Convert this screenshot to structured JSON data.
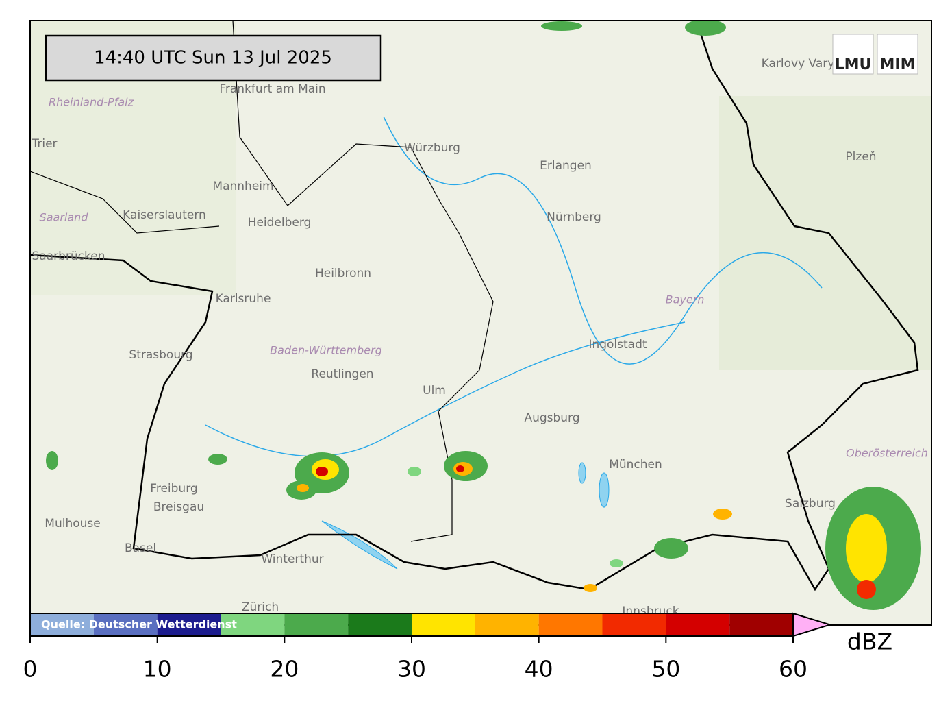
{
  "timestamp": "14:40 UTC  Sun 13 Jul 2025",
  "logo": [
    "LMU",
    "MIM"
  ],
  "map_labels": {
    "cities": [
      "Frankfurt am Main",
      "Trier",
      "Mannheim",
      "Kaiserslautern",
      "Heidelberg",
      "Saarbrücken",
      "Karlsruhe",
      "Heilbronn",
      "Strasbourg",
      "Reutlingen",
      "Ulm",
      "Würzburg",
      "Erlangen",
      "Nürnberg",
      "Ingolstadt",
      "Augsburg",
      "München",
      "Freiburg",
      "Breisgau",
      "Mulhouse",
      "Basel",
      "Winterthur",
      "Zürich",
      "Salzburg",
      "Innsbruck",
      "Karlovy Vary",
      "Plzeň"
    ],
    "regions": [
      "Rheinland-Pfalz",
      "Saarland",
      "Baden-Württemberg",
      "Bayern",
      "Oberösterreich"
    ]
  },
  "colorbar": {
    "bins": [
      0,
      5,
      10,
      15,
      20,
      25,
      30,
      35,
      40,
      45,
      50,
      55,
      60
    ],
    "colors": [
      "#8eaedb",
      "#5a6fc0",
      "#1c1c8e",
      "#7fd67f",
      "#4caa4c",
      "#1b7a1b",
      "#ffe400",
      "#ffb300",
      "#ff7700",
      "#f22a00",
      "#d40000",
      "#a00000"
    ],
    "extend_color": "#ffb0f5",
    "ticks": [
      0,
      10,
      20,
      30,
      40,
      50,
      60
    ],
    "unit": "dBZ",
    "source": "Quelle: Deutscher Wetterdienst"
  }
}
